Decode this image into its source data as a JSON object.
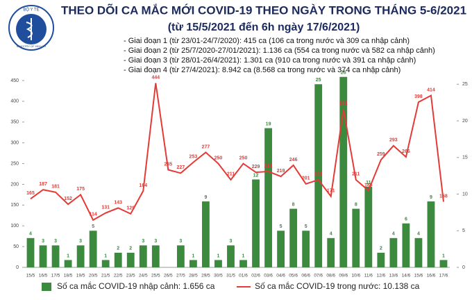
{
  "logo": {
    "top": "BỘ Y TẾ",
    "bottom": "MINISTRY OF HEALTH"
  },
  "chart_data": {
    "type": "bar",
    "title": "THEO DÕI CA MẮC MỚI COVID-19 THEO NGÀY TRONG THÁNG 5-6/2021",
    "subtitle": "(từ 15/5/2021 đến 6h ngày 17/6/2021)",
    "notes": [
      "- Giai đoạn 1 (từ 23/01-24/7/2020): 415 ca (106 ca trong nước và 309 ca nhập cảnh)",
      "- Giai đoạn 2 (từ 25/7/2020-27/01/2021): 1.136 ca (554 ca trong nước và 582 ca nhập cảnh)",
      "- Giai đoạn 3 (từ 28/01-26/4/2021): 1.301 ca (910 ca trong nước và 391 ca nhập cảnh)",
      "- Giai đoạn 4 (từ 27/4/2021): 8.942 ca (8.568 ca trong nước và 374 ca nhập cảnh)"
    ],
    "categories": [
      "15/5",
      "16/5",
      "17/5",
      "18/5",
      "19/5",
      "20/5",
      "21/5",
      "22/5",
      "23/5",
      "24/5",
      "25/5",
      "26/5",
      "27/5",
      "28/5",
      "29/5",
      "30/5",
      "31/5",
      "01/6",
      "02/6",
      "03/6",
      "04/6",
      "05/6",
      "06/6",
      "07/6",
      "08/6",
      "09/6",
      "10/6",
      "11/6",
      "12/6",
      "13/6",
      "14/6",
      "15/6",
      "16/6",
      "17/6"
    ],
    "series": [
      {
        "name": "Số ca mắc COVID-19 nhập cảnh: 1.656 ca",
        "type": "bar",
        "axis": "y2",
        "color": "#3b8a3e",
        "values": [
          4,
          3,
          3,
          1,
          3,
          5,
          1,
          2,
          2,
          3,
          3,
          null,
          3,
          1,
          9,
          1,
          3,
          1,
          12,
          19,
          5,
          8,
          5,
          25,
          4,
          26,
          8,
          11,
          2,
          4,
          6,
          4,
          9,
          1
        ]
      },
      {
        "name": "Số ca mắc COVID-19 trong nước: 10.138 ca",
        "type": "line",
        "color": "#e53935",
        "values": [
          165,
          187,
          181,
          152,
          175,
          114,
          131,
          143,
          129,
          184,
          444,
          235,
          227,
          253,
          277,
          250,
          211,
          250,
          229,
          231,
          219,
          246,
          201,
          211,
          171,
          381,
          211,
          185,
          259,
          293,
          266,
          398,
          414,
          158
        ]
      }
    ],
    "ylim": [
      0,
      450
    ],
    "yticks": [
      0,
      50,
      100,
      150,
      200,
      250,
      300,
      350,
      400,
      450
    ],
    "y2lim": [
      0,
      25.5
    ],
    "y2ticks": [
      0,
      5,
      10,
      15,
      20,
      25
    ]
  }
}
